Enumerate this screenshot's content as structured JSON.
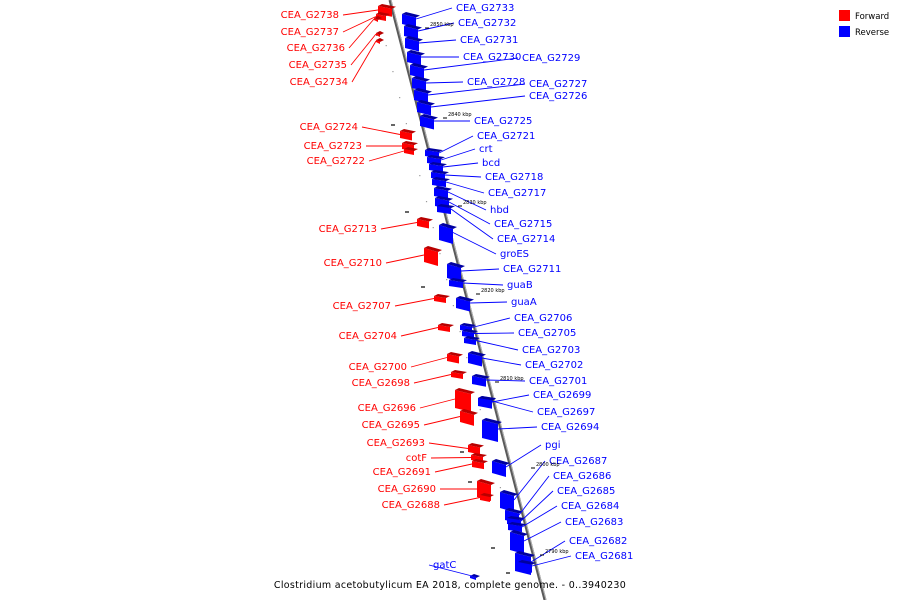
{
  "caption": "Clostridium acetobutylicum EA 2018, complete genome. - 0..3940230",
  "legend": {
    "forward_label": "Forward",
    "reverse_label": "Reverse",
    "forward_color": "#ff0000",
    "reverse_color": "#0000ff"
  },
  "colors": {
    "forward": "#ff0000",
    "forward_dark": "#b80000",
    "reverse": "#0000ff",
    "reverse_dark": "#0000a0",
    "axis": "#808080"
  },
  "scale_marks": [
    "2850 kbp",
    "2840 kbp",
    "2830 kbp",
    "2820 kbp",
    "2810 kbp",
    "2800 kbp",
    "2790 kbp"
  ],
  "forward_genes": [
    "CEA_G2738",
    "CEA_G2737",
    "CEA_G2736",
    "CEA_G2735",
    "CEA_G2734",
    "CEA_G2724",
    "CEA_G2723",
    "CEA_G2722",
    "CEA_G2713",
    "CEA_G2710",
    "CEA_G2707",
    "CEA_G2704",
    "CEA_G2700",
    "CEA_G2698",
    "CEA_G2696",
    "CEA_G2695",
    "CEA_G2693",
    "cotF",
    "CEA_G2691",
    "CEA_G2690",
    "CEA_G2688"
  ],
  "reverse_genes": [
    "CEA_G2733",
    "CEA_G2732",
    "CEA_G2731",
    "CEA_G2730",
    "CEA_G2729",
    "CEA_G2728",
    "CEA_G2727",
    "CEA_G2726",
    "CEA_G2725",
    "CEA_G2721",
    "crt",
    "bcd",
    "CEA_G2718",
    "CEA_G2717",
    "hbd",
    "CEA_G2715",
    "CEA_G2714",
    "groES",
    "CEA_G2711",
    "guaB",
    "guaA",
    "CEA_G2706",
    "CEA_G2705",
    "CEA_G2703",
    "CEA_G2702",
    "CEA_G2701",
    "CEA_G2699",
    "CEA_G2697",
    "CEA_G2694",
    "pgi",
    "CEA_G2687",
    "CEA_G2686",
    "CEA_G2685",
    "CEA_G2684",
    "CEA_G2683",
    "CEA_G2682",
    "CEA_G2681",
    "gatC"
  ]
}
